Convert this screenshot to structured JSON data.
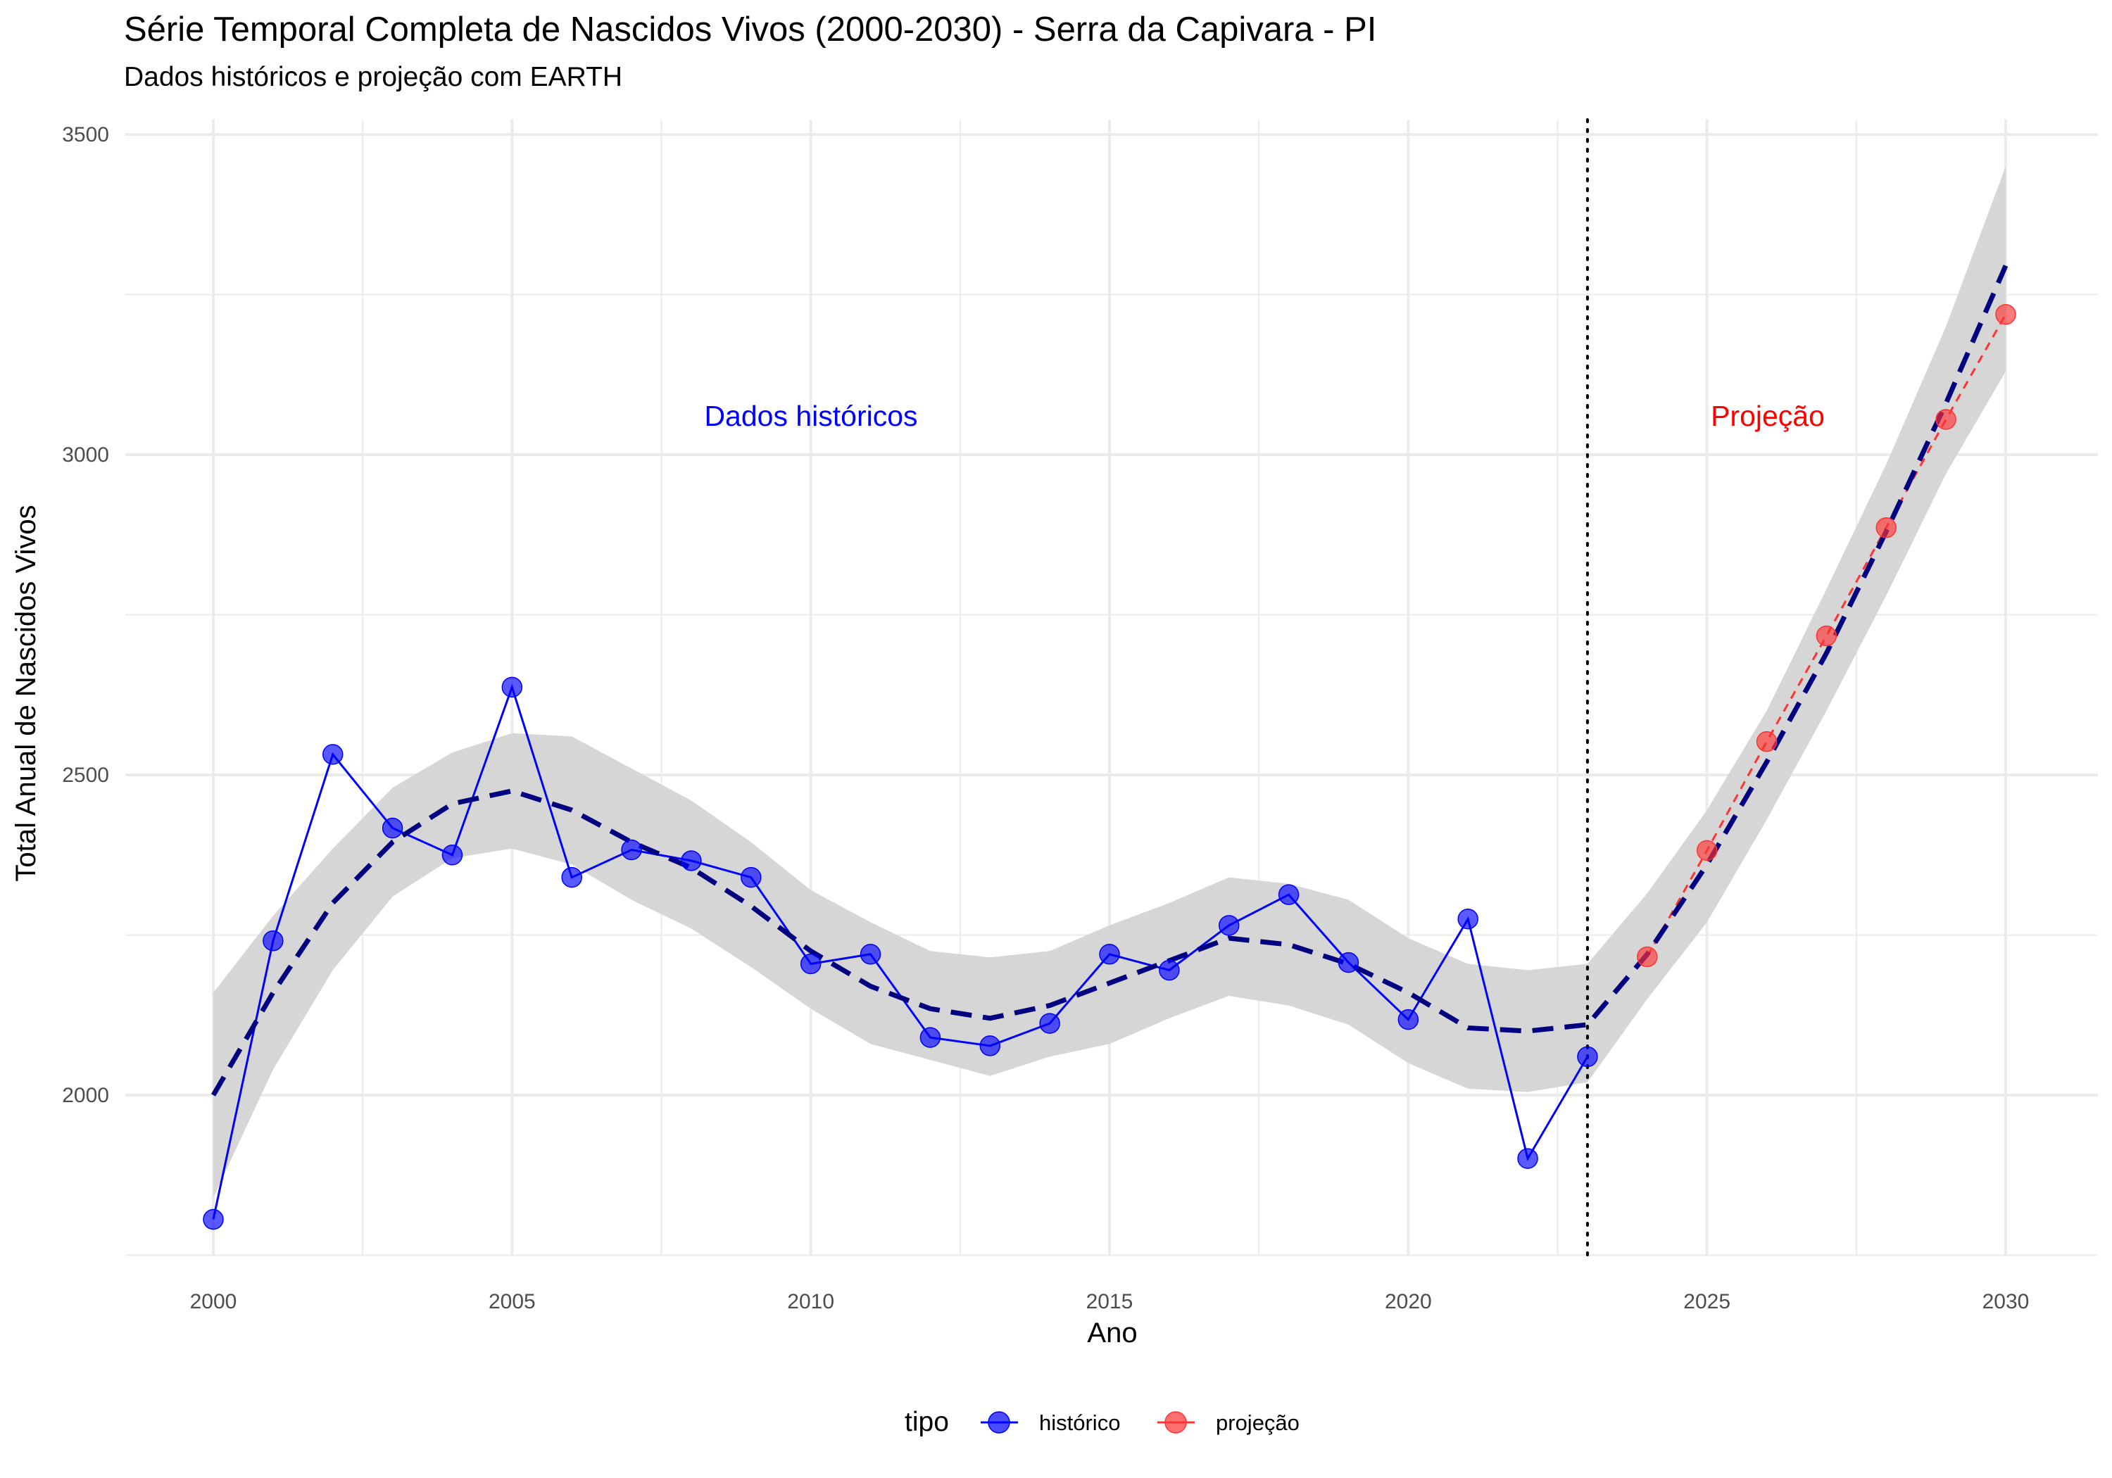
{
  "title": "Série Temporal Completa de Nascidos Vivos (2000-2030) -  Serra da Capivara - PI",
  "subtitle": "Dados históricos e projeção com EARTH",
  "annotations": {
    "historical": "Dados históricos",
    "projection": "Projeção"
  },
  "colors": {
    "historico": "#0000ff",
    "projecao": "#ff3333",
    "trend": "#000080",
    "ribbon": "#d6d6d6",
    "grid": "#ebebeb",
    "historical_label": "#0000ff",
    "projection_label": "#ff0000"
  },
  "legend": {
    "title": "tipo",
    "entries": [
      {
        "label": "histórico",
        "color": "#0000ff"
      },
      {
        "label": "projeção",
        "color": "#ff3333"
      }
    ]
  },
  "chart_data": {
    "type": "line",
    "xlabel": "Ano",
    "ylabel": "Total Anual de Nascidos Vivos",
    "xlim": [
      1998.5,
      2031.5
    ],
    "ylim": [
      1750,
      3510
    ],
    "x_ticks": [
      2000,
      2005,
      2010,
      2015,
      2020,
      2025,
      2030
    ],
    "y_ticks": [
      2000,
      2500,
      3000,
      3500
    ],
    "grid": true,
    "legend_position": "bottom",
    "cutoff_year": 2023,
    "series": [
      {
        "name": "histórico",
        "x": [
          2000,
          2001,
          2002,
          2003,
          2004,
          2005,
          2006,
          2007,
          2008,
          2009,
          2010,
          2011,
          2012,
          2013,
          2014,
          2015,
          2016,
          2017,
          2018,
          2019,
          2020,
          2021,
          2022,
          2023
        ],
        "values": [
          1806,
          2241,
          2532,
          2417,
          2375,
          2637,
          2340,
          2383,
          2366,
          2340,
          2205,
          2220,
          2090,
          2077,
          2112,
          2220,
          2195,
          2265,
          2313,
          2207,
          2118,
          2275,
          1901,
          2060
        ]
      },
      {
        "name": "projeção",
        "x": [
          2024,
          2025,
          2026,
          2027,
          2028,
          2029,
          2030
        ],
        "values": [
          2216,
          2382,
          2552,
          2717,
          2886,
          3055,
          3219
        ]
      }
    ],
    "trend": {
      "x": [
        2000,
        2001,
        2002,
        2003,
        2004,
        2005,
        2006,
        2007,
        2008,
        2009,
        2010,
        2011,
        2012,
        2013,
        2014,
        2015,
        2016,
        2017,
        2018,
        2019,
        2020,
        2021,
        2022,
        2023,
        2024,
        2025,
        2026,
        2027,
        2028,
        2029,
        2030
      ],
      "values": [
        2000,
        2160,
        2300,
        2395,
        2455,
        2475,
        2445,
        2395,
        2355,
        2295,
        2225,
        2170,
        2135,
        2120,
        2140,
        2175,
        2210,
        2245,
        2235,
        2205,
        2160,
        2105,
        2100,
        2110,
        2220,
        2360,
        2520,
        2690,
        2880,
        3080,
        3295
      ],
      "lower": [
        1840,
        2040,
        2195,
        2310,
        2370,
        2385,
        2360,
        2305,
        2260,
        2200,
        2135,
        2080,
        2055,
        2030,
        2060,
        2080,
        2120,
        2155,
        2140,
        2110,
        2050,
        2010,
        2005,
        2020,
        2150,
        2270,
        2430,
        2600,
        2780,
        2970,
        3130
      ],
      "upper": [
        2160,
        2280,
        2385,
        2480,
        2535,
        2565,
        2560,
        2510,
        2460,
        2395,
        2320,
        2270,
        2225,
        2215,
        2225,
        2265,
        2300,
        2340,
        2330,
        2305,
        2245,
        2205,
        2195,
        2205,
        2315,
        2445,
        2600,
        2790,
        2985,
        3200,
        3450
      ]
    }
  }
}
